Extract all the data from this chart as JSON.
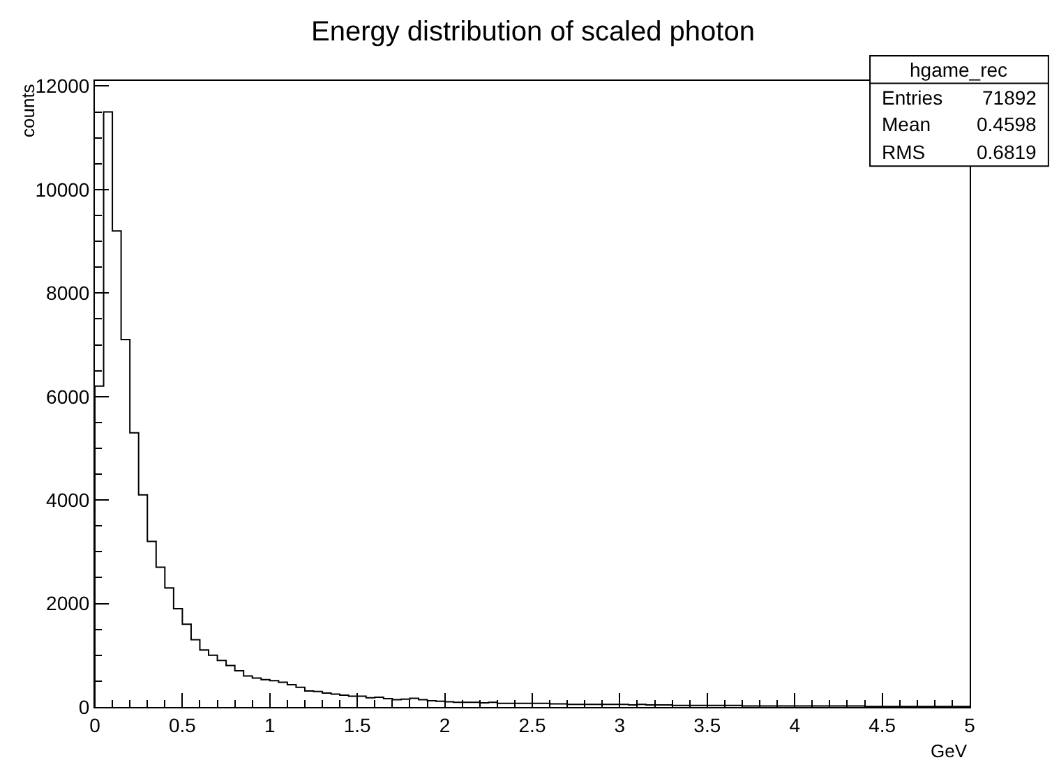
{
  "chart_data": {
    "type": "histogram",
    "title": "Energy distribution of scaled photon",
    "xlabel": "GeV",
    "ylabel": "counts",
    "bins": [
      0,
      0.05,
      0.1,
      0.15,
      0.2,
      0.25,
      0.3,
      0.35,
      0.4,
      0.45,
      0.5,
      0.55,
      0.6,
      0.65,
      0.7,
      0.75,
      0.8,
      0.85,
      0.9,
      0.95,
      1,
      1.05,
      1.1,
      1.15,
      1.2,
      1.25,
      1.3,
      1.35,
      1.4,
      1.45,
      1.5,
      1.55,
      1.6,
      1.65,
      1.7,
      1.75,
      1.8,
      1.85,
      1.9,
      1.95,
      2,
      2.05,
      2.1,
      2.15,
      2.2,
      2.25,
      2.3,
      2.35,
      2.4,
      2.45,
      2.5,
      2.55,
      2.6,
      2.65,
      2.7,
      2.75,
      2.8,
      2.85,
      2.9,
      2.95,
      3,
      3.05,
      3.1,
      3.15,
      3.2,
      3.25,
      3.3,
      3.35,
      3.4,
      3.45,
      3.5,
      3.55,
      3.6,
      3.65,
      3.7,
      3.75,
      3.8,
      3.85,
      3.9,
      3.95,
      4,
      4.05,
      4.1,
      4.15,
      4.2,
      4.25,
      4.3,
      4.35,
      4.4,
      4.45,
      4.5,
      4.55,
      4.6,
      4.65,
      4.7,
      4.75,
      4.8,
      4.85,
      4.9,
      4.95,
      5
    ],
    "values": [
      6200,
      11500,
      9200,
      7100,
      5300,
      4100,
      3200,
      2700,
      2300,
      1900,
      1600,
      1300,
      1100,
      1000,
      900,
      800,
      700,
      600,
      560,
      530,
      510,
      480,
      430,
      380,
      310,
      300,
      270,
      250,
      230,
      210,
      210,
      180,
      190,
      160,
      140,
      150,
      170,
      140,
      120,
      110,
      100,
      90,
      90,
      90,
      80,
      90,
      70,
      70,
      70,
      70,
      70,
      70,
      60,
      60,
      50,
      50,
      50,
      50,
      50,
      50,
      50,
      40,
      50,
      40,
      40,
      40,
      30,
      30,
      30,
      30,
      30,
      30,
      30,
      30,
      20,
      20,
      20,
      20,
      20,
      20,
      20,
      20,
      20,
      20,
      20,
      20,
      20,
      20,
      10,
      10,
      10,
      10,
      10,
      10,
      10,
      10,
      10,
      10,
      10,
      10
    ],
    "color": "#000000",
    "xlim": [
      0,
      5
    ],
    "xticks": [
      0,
      0.5,
      1,
      1.5,
      2,
      2.5,
      3,
      3.5,
      4,
      4.5,
      5
    ],
    "ylim": [
      0,
      12100
    ],
    "yticks": [
      0,
      2000,
      4000,
      6000,
      8000,
      10000,
      12000
    ],
    "legend": false,
    "annotations": [
      "hgame_rec",
      "Entries",
      "71892",
      "Mean",
      "0.4598",
      "RMS",
      "0.6819"
    ]
  }
}
